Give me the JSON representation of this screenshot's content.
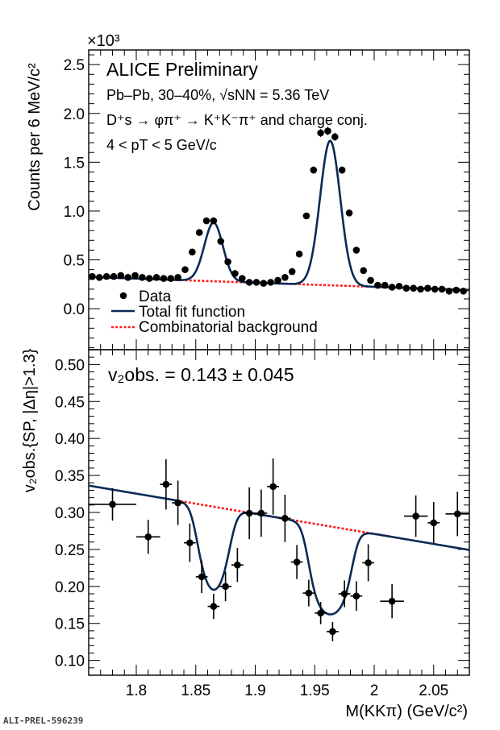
{
  "footer_id": "ALI-PREL-596239",
  "top_panel": {
    "exponent_label": "×10³",
    "ylabel": "Counts per 6 MeV/c²",
    "yticks": [
      "0.0",
      "0.5",
      "1.0",
      "1.5",
      "2.0",
      "2.5"
    ],
    "annotations": {
      "experiment": "ALICE Preliminary",
      "system": "Pb–Pb, 30–40%, √sNN = 5.36 TeV",
      "decay": "D⁺s → φπ⁺ → K⁺K⁻π⁺ and charge conj.",
      "pt_range": "4 < pT < 5 GeV/c"
    },
    "legend": {
      "data": "Data",
      "total_fit": "Total fit function",
      "background": "Combinatorial background"
    }
  },
  "bottom_panel": {
    "ylabel": "v₂obs.{SP, |Δη|>1.3}",
    "v2_result": "v₂obs. = 0.143 ± 0.045",
    "yticks": [
      "0.10",
      "0.15",
      "0.20",
      "0.25",
      "0.30",
      "0.35",
      "0.40",
      "0.45",
      "0.50"
    ],
    "xticks": [
      "1.8",
      "1.85",
      "1.9",
      "1.95",
      "2",
      "2.05"
    ],
    "xlabel": "M(KKπ) (GeV/c²)"
  },
  "colors": {
    "data": "#000000",
    "total_fit": "#0b2a55",
    "background": "#ff1a1a"
  },
  "chart_data": [
    {
      "type": "scatter",
      "title": "",
      "xlabel": "M(KKπ) (GeV/c²)",
      "ylabel": "Counts per 6 MeV/c² (×10³)",
      "xlim": [
        1.76,
        2.08
      ],
      "ylim": [
        -0.42,
        2.65
      ],
      "grid": false,
      "legend_position": "bottom-left",
      "series": [
        {
          "name": "Data",
          "x": [
            1.763,
            1.769,
            1.775,
            1.781,
            1.787,
            1.793,
            1.799,
            1.805,
            1.811,
            1.817,
            1.823,
            1.829,
            1.835,
            1.841,
            1.847,
            1.853,
            1.859,
            1.865,
            1.871,
            1.877,
            1.883,
            1.889,
            1.895,
            1.901,
            1.907,
            1.913,
            1.919,
            1.925,
            1.931,
            1.937,
            1.943,
            1.949,
            1.955,
            1.961,
            1.967,
            1.973,
            1.979,
            1.985,
            1.991,
            1.997,
            2.003,
            2.009,
            2.015,
            2.021,
            2.027,
            2.033,
            2.039,
            2.045,
            2.051,
            2.057,
            2.063,
            2.069,
            2.075
          ],
          "y": [
            0.33,
            0.32,
            0.33,
            0.33,
            0.34,
            0.32,
            0.34,
            0.32,
            0.31,
            0.32,
            0.31,
            0.31,
            0.32,
            0.4,
            0.58,
            0.78,
            0.9,
            0.9,
            0.69,
            0.48,
            0.36,
            0.31,
            0.27,
            0.27,
            0.26,
            0.27,
            0.29,
            0.32,
            0.38,
            0.56,
            0.95,
            1.42,
            1.8,
            1.82,
            1.76,
            1.42,
            0.98,
            0.6,
            0.39,
            0.29,
            0.24,
            0.24,
            0.22,
            0.23,
            0.21,
            0.21,
            0.2,
            0.21,
            0.2,
            0.2,
            0.18,
            0.19,
            0.18
          ]
        },
        {
          "name": "Total fit function",
          "curve": {
            "bkg_a": 0.325,
            "bkg_slope": -0.42,
            "bkg_x0": 1.76,
            "peak1": {
              "mean": 1.865,
              "sigma": 0.0078,
              "amp": 0.6
            },
            "peak2": {
              "mean": 1.963,
              "sigma": 0.0085,
              "amp": 1.48
            }
          }
        },
        {
          "name": "Combinatorial background",
          "curve": {
            "bkg_a": 0.325,
            "bkg_slope": -0.42,
            "bkg_x0": 1.76
          }
        }
      ]
    },
    {
      "type": "scatter",
      "title": "",
      "xlabel": "M(KKπ) (GeV/c²)",
      "ylabel": "v₂obs.{SP, |Δη|>1.3}",
      "xlim": [
        1.76,
        2.08
      ],
      "ylim": [
        0.08,
        0.52
      ],
      "grid": false,
      "series": [
        {
          "name": "Data",
          "points": [
            {
              "x": 1.78,
              "y": 0.311,
              "xerr": 0.02,
              "yerr": 0.022
            },
            {
              "x": 1.81,
              "y": 0.267,
              "xerr": 0.01,
              "yerr": 0.023
            },
            {
              "x": 1.825,
              "y": 0.338,
              "xerr": 0.005,
              "yerr": 0.034
            },
            {
              "x": 1.835,
              "y": 0.313,
              "xerr": 0.005,
              "yerr": 0.03
            },
            {
              "x": 1.845,
              "y": 0.259,
              "xerr": 0.005,
              "yerr": 0.026
            },
            {
              "x": 1.855,
              "y": 0.213,
              "xerr": 0.005,
              "yerr": 0.022
            },
            {
              "x": 1.865,
              "y": 0.173,
              "xerr": 0.005,
              "yerr": 0.017
            },
            {
              "x": 1.875,
              "y": 0.2,
              "xerr": 0.005,
              "yerr": 0.02
            },
            {
              "x": 1.885,
              "y": 0.229,
              "xerr": 0.005,
              "yerr": 0.023
            },
            {
              "x": 1.895,
              "y": 0.299,
              "xerr": 0.005,
              "yerr": 0.035
            },
            {
              "x": 1.905,
              "y": 0.299,
              "xerr": 0.005,
              "yerr": 0.032
            },
            {
              "x": 1.915,
              "y": 0.335,
              "xerr": 0.005,
              "yerr": 0.038
            },
            {
              "x": 1.925,
              "y": 0.292,
              "xerr": 0.005,
              "yerr": 0.032
            },
            {
              "x": 1.935,
              "y": 0.233,
              "xerr": 0.005,
              "yerr": 0.023
            },
            {
              "x": 1.945,
              "y": 0.191,
              "xerr": 0.005,
              "yerr": 0.018
            },
            {
              "x": 1.955,
              "y": 0.164,
              "xerr": 0.005,
              "yerr": 0.015
            },
            {
              "x": 1.965,
              "y": 0.139,
              "xerr": 0.005,
              "yerr": 0.013
            },
            {
              "x": 1.975,
              "y": 0.19,
              "xerr": 0.005,
              "yerr": 0.018
            },
            {
              "x": 1.985,
              "y": 0.187,
              "xerr": 0.005,
              "yerr": 0.02
            },
            {
              "x": 1.995,
              "y": 0.232,
              "xerr": 0.005,
              "yerr": 0.025
            },
            {
              "x": 2.015,
              "y": 0.18,
              "xerr": 0.01,
              "yerr": 0.023
            },
            {
              "x": 2.035,
              "y": 0.295,
              "xerr": 0.01,
              "yerr": 0.028
            },
            {
              "x": 2.05,
              "y": 0.286,
              "xerr": 0.005,
              "yerr": 0.028
            },
            {
              "x": 2.07,
              "y": 0.298,
              "xerr": 0.01,
              "yerr": 0.03
            }
          ]
        },
        {
          "name": "Total fit function",
          "curve": {
            "bkg_a": 0.3363,
            "bkg_slope": -0.2719,
            "bkg_x0": 1.76,
            "v2_sig": 0.143,
            "bkg_left": 0.317,
            "bkg_right": 0.262
          }
        },
        {
          "name": "Combinatorial background",
          "curve": {
            "bkg_a": 0.3363,
            "bkg_slope": -0.2719,
            "bkg_x0": 1.76,
            "shown_from": 1.83,
            "shown_to": 2.015
          }
        }
      ]
    }
  ]
}
